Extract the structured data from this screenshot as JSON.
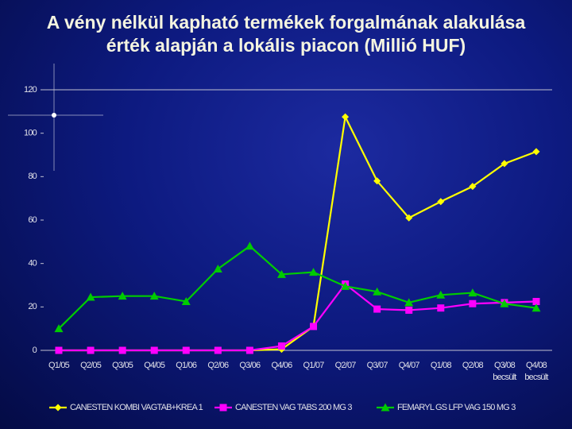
{
  "chart_data": {
    "type": "line",
    "title": "A vény nélkül kapható termékek forgalmának alakulása érték alapján a lokális piacon (Millió HUF)",
    "categories": [
      "Q1/05",
      "Q2/05",
      "Q3/05",
      "Q4/05",
      "Q1/06",
      "Q2/06",
      "Q3/06",
      "Q4/06",
      "Q1/07",
      "Q2/07",
      "Q3/07",
      "Q4/07",
      "Q1/08",
      "Q2/08",
      "Q3/08 becsült",
      "Q4/08 becsült"
    ],
    "series": [
      {
        "name": "CANESTEN KOMBI VAGTAB+KREA 1",
        "color": "#ffff00",
        "marker": "diamond",
        "values": [
          0,
          0,
          0,
          0,
          0,
          0,
          0,
          0.5,
          11,
          107.5,
          78,
          61,
          68.5,
          75.5,
          86,
          91.5
        ]
      },
      {
        "name": "CANESTEN VAG TABS 200 MG 3",
        "color": "#ff00ff",
        "marker": "square",
        "values": [
          0,
          0,
          0,
          0,
          0,
          0,
          0,
          2,
          11,
          30.5,
          19,
          18.5,
          19.5,
          21.5,
          22,
          22.5
        ]
      },
      {
        "name": "FEMARYL GS LFP VAG 150 MG 3",
        "color": "#00cc00",
        "marker": "triangle",
        "values": [
          10,
          24.5,
          25,
          25,
          22.5,
          37.5,
          48,
          35,
          36,
          29.5,
          27,
          22,
          25.5,
          26.5,
          21.5,
          19.5
        ]
      }
    ],
    "ylim": [
      0,
      120
    ],
    "yticks": [
      0,
      20,
      40,
      60,
      80,
      100,
      120
    ],
    "grid": false,
    "legend": "bottom"
  }
}
